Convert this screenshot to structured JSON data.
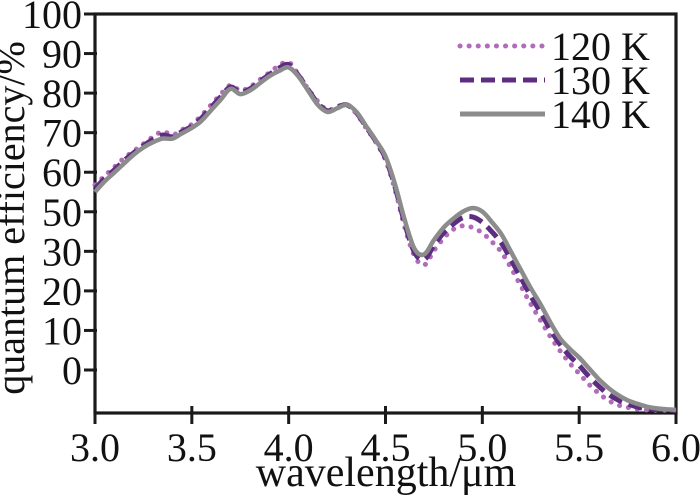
{
  "figure": {
    "background": "#ffffff",
    "axis_color": "#1a1a1a"
  },
  "chart_data": {
    "type": "line",
    "title": "",
    "xlabel": "wavelength/μm",
    "ylabel": "quantum efficiency/%",
    "xlim": [
      3.0,
      6.0
    ],
    "ylim": [
      -12.1,
      100
    ],
    "grid": false,
    "legend_position": "top-right-inside",
    "x_tick_labels": [
      "3.0",
      "3.5",
      "4.0",
      "4.5",
      "5.0",
      "5.5",
      "6.0"
    ],
    "y_tick_labels": [
      "0",
      "10",
      "20",
      "30",
      "50",
      "60",
      "70",
      "80",
      "90",
      "100"
    ],
    "x": [
      3.0,
      3.05,
      3.1,
      3.15,
      3.2,
      3.25,
      3.3,
      3.35,
      3.4,
      3.45,
      3.5,
      3.55,
      3.6,
      3.65,
      3.7,
      3.75,
      3.8,
      3.85,
      3.9,
      3.95,
      4.0,
      4.05,
      4.1,
      4.15,
      4.2,
      4.25,
      4.3,
      4.35,
      4.4,
      4.45,
      4.5,
      4.55,
      4.6,
      4.65,
      4.7,
      4.75,
      4.8,
      4.85,
      4.9,
      4.95,
      5.0,
      5.05,
      5.1,
      5.15,
      5.2,
      5.25,
      5.3,
      5.35,
      5.4,
      5.45,
      5.5,
      5.55,
      5.6,
      5.65,
      5.7,
      5.75,
      5.8,
      5.85,
      5.9,
      5.95,
      6.0
    ],
    "series": [
      {
        "name": "120 K",
        "style": "dotted",
        "color": "#b06cb8",
        "values": [
          52.0,
          54.5,
          57.0,
          59.5,
          61.5,
          63.5,
          65.5,
          67.0,
          66.0,
          67.5,
          69.0,
          71.5,
          74.5,
          77.5,
          80.0,
          78.5,
          79.5,
          81.5,
          83.5,
          85.5,
          86.5,
          83.0,
          79.0,
          75.5,
          73.0,
          74.0,
          74.5,
          72.0,
          68.0,
          64.0,
          59.0,
          50.5,
          40.0,
          32.0,
          29.5,
          33.5,
          37.0,
          39.5,
          40.5,
          40.0,
          38.5,
          36.0,
          33.0,
          28.5,
          23.5,
          18.5,
          14.0,
          9.5,
          5.5,
          2.0,
          -1.0,
          -4.0,
          -6.5,
          -8.5,
          -9.8,
          -10.5,
          -11.0,
          -11.2,
          -11.3,
          -11.3,
          -11.3
        ]
      },
      {
        "name": "130 K",
        "style": "dashed",
        "color": "#5c2d80",
        "values": [
          51.0,
          53.8,
          56.2,
          58.8,
          61.0,
          63.0,
          64.8,
          66.0,
          65.5,
          67.0,
          68.5,
          70.8,
          73.8,
          76.8,
          79.5,
          78.0,
          79.0,
          81.0,
          83.0,
          84.8,
          85.8,
          82.8,
          78.8,
          75.0,
          72.8,
          73.8,
          74.5,
          72.3,
          68.3,
          64.3,
          59.5,
          51.3,
          41.0,
          33.0,
          31.0,
          35.0,
          38.5,
          41.0,
          42.8,
          43.0,
          41.5,
          38.8,
          35.5,
          30.8,
          25.8,
          20.8,
          16.3,
          11.5,
          7.3,
          4.0,
          1.3,
          -1.8,
          -4.5,
          -6.8,
          -8.4,
          -9.5,
          -10.4,
          -10.9,
          -11.1,
          -11.2,
          -11.3
        ]
      },
      {
        "name": "140 K",
        "style": "solid",
        "color": "#8c8c8c",
        "values": [
          50.0,
          53.0,
          55.5,
          58.0,
          60.5,
          62.5,
          64.0,
          65.0,
          65.0,
          66.5,
          68.0,
          70.0,
          73.0,
          76.0,
          79.0,
          77.5,
          78.5,
          80.5,
          82.5,
          84.0,
          85.0,
          82.5,
          78.5,
          74.5,
          72.5,
          73.5,
          74.5,
          72.5,
          68.5,
          64.5,
          60.0,
          52.0,
          42.0,
          34.0,
          32.5,
          36.5,
          40.0,
          42.5,
          44.5,
          45.5,
          44.5,
          41.5,
          38.0,
          33.0,
          28.0,
          23.0,
          18.5,
          13.5,
          9.0,
          6.0,
          3.5,
          0.5,
          -2.5,
          -5.0,
          -7.0,
          -8.5,
          -9.5,
          -10.3,
          -10.8,
          -11.0,
          -11.2
        ]
      }
    ]
  }
}
